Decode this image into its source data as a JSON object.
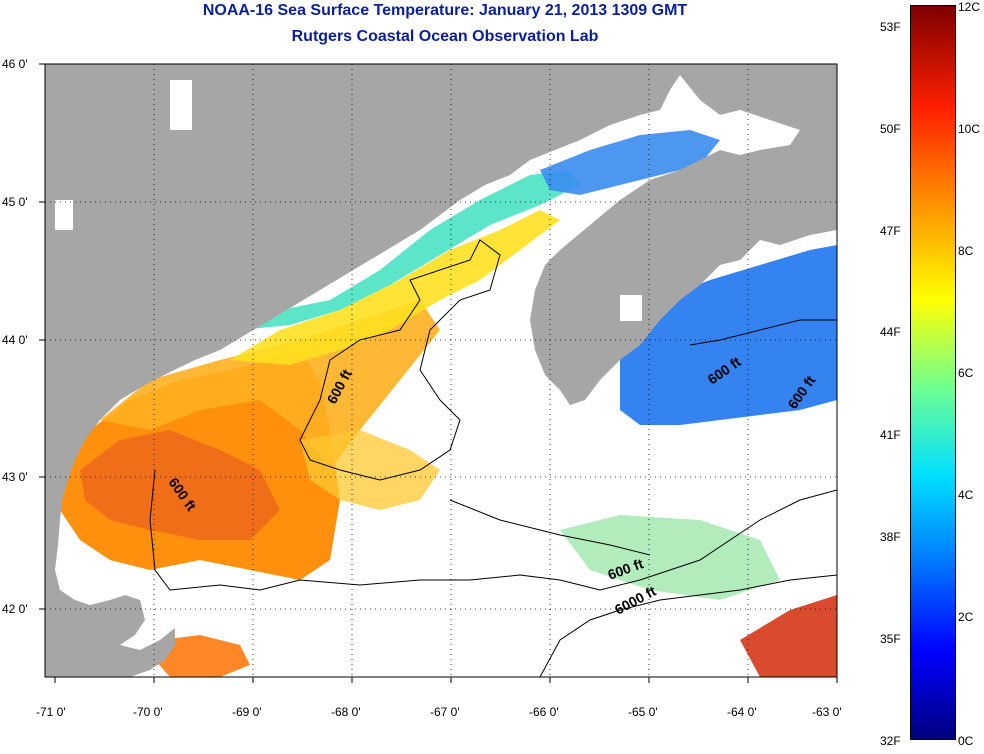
{
  "header": {
    "title": "NOAA-16 Sea Surface Temperature:  January 21, 2013 1309 GMT",
    "subtitle": "Rutgers Coastal Ocean Observation Lab"
  },
  "map": {
    "longitude_ticks": [
      "-71 0'",
      "-70 0'",
      "-69 0'",
      "-68 0'",
      "-67 0'",
      "-66 0'",
      "-65 0'",
      "-64 0'",
      "-63 0'"
    ],
    "latitude_ticks": [
      "46 0'",
      "45 0'",
      "44 0'",
      "43 0'",
      "42 0'"
    ],
    "contour_labels": [
      "600 ft",
      "600 ft",
      "600 ft",
      "600 ft",
      "600 ft",
      "6000 ft"
    ],
    "colors": {
      "land": "#a6a6a6",
      "no_data": "#ffffff",
      "frame": "#000000"
    }
  },
  "colorbar": {
    "fahrenheit_labels": [
      "53F",
      "50F",
      "47F",
      "44F",
      "41F",
      "38F",
      "35F",
      "32F"
    ],
    "celsius_labels": [
      "12C",
      "10C",
      "8C",
      "6C",
      "4C",
      "2C",
      "0C"
    ],
    "range_c": [
      0,
      12
    ],
    "range_f": [
      32,
      53.6
    ]
  }
}
